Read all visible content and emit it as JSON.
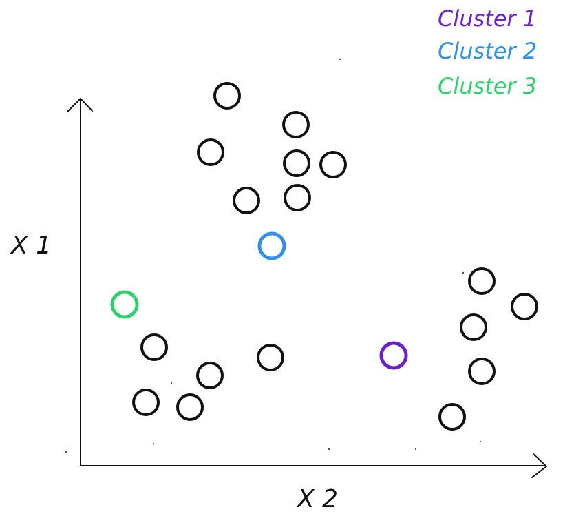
{
  "diagram": {
    "axes": {
      "vertical_label": "X 1",
      "horizontal_label": "X 2"
    },
    "legend": {
      "placement": "top-right",
      "items": [
        {
          "label": "Cluster 1",
          "color": "#6a1fd0"
        },
        {
          "label": "Cluster 2",
          "color": "#2f8fea"
        },
        {
          "label": "Cluster 3",
          "color": "#2fd06a"
        }
      ]
    },
    "points_color": "#111111"
  }
}
